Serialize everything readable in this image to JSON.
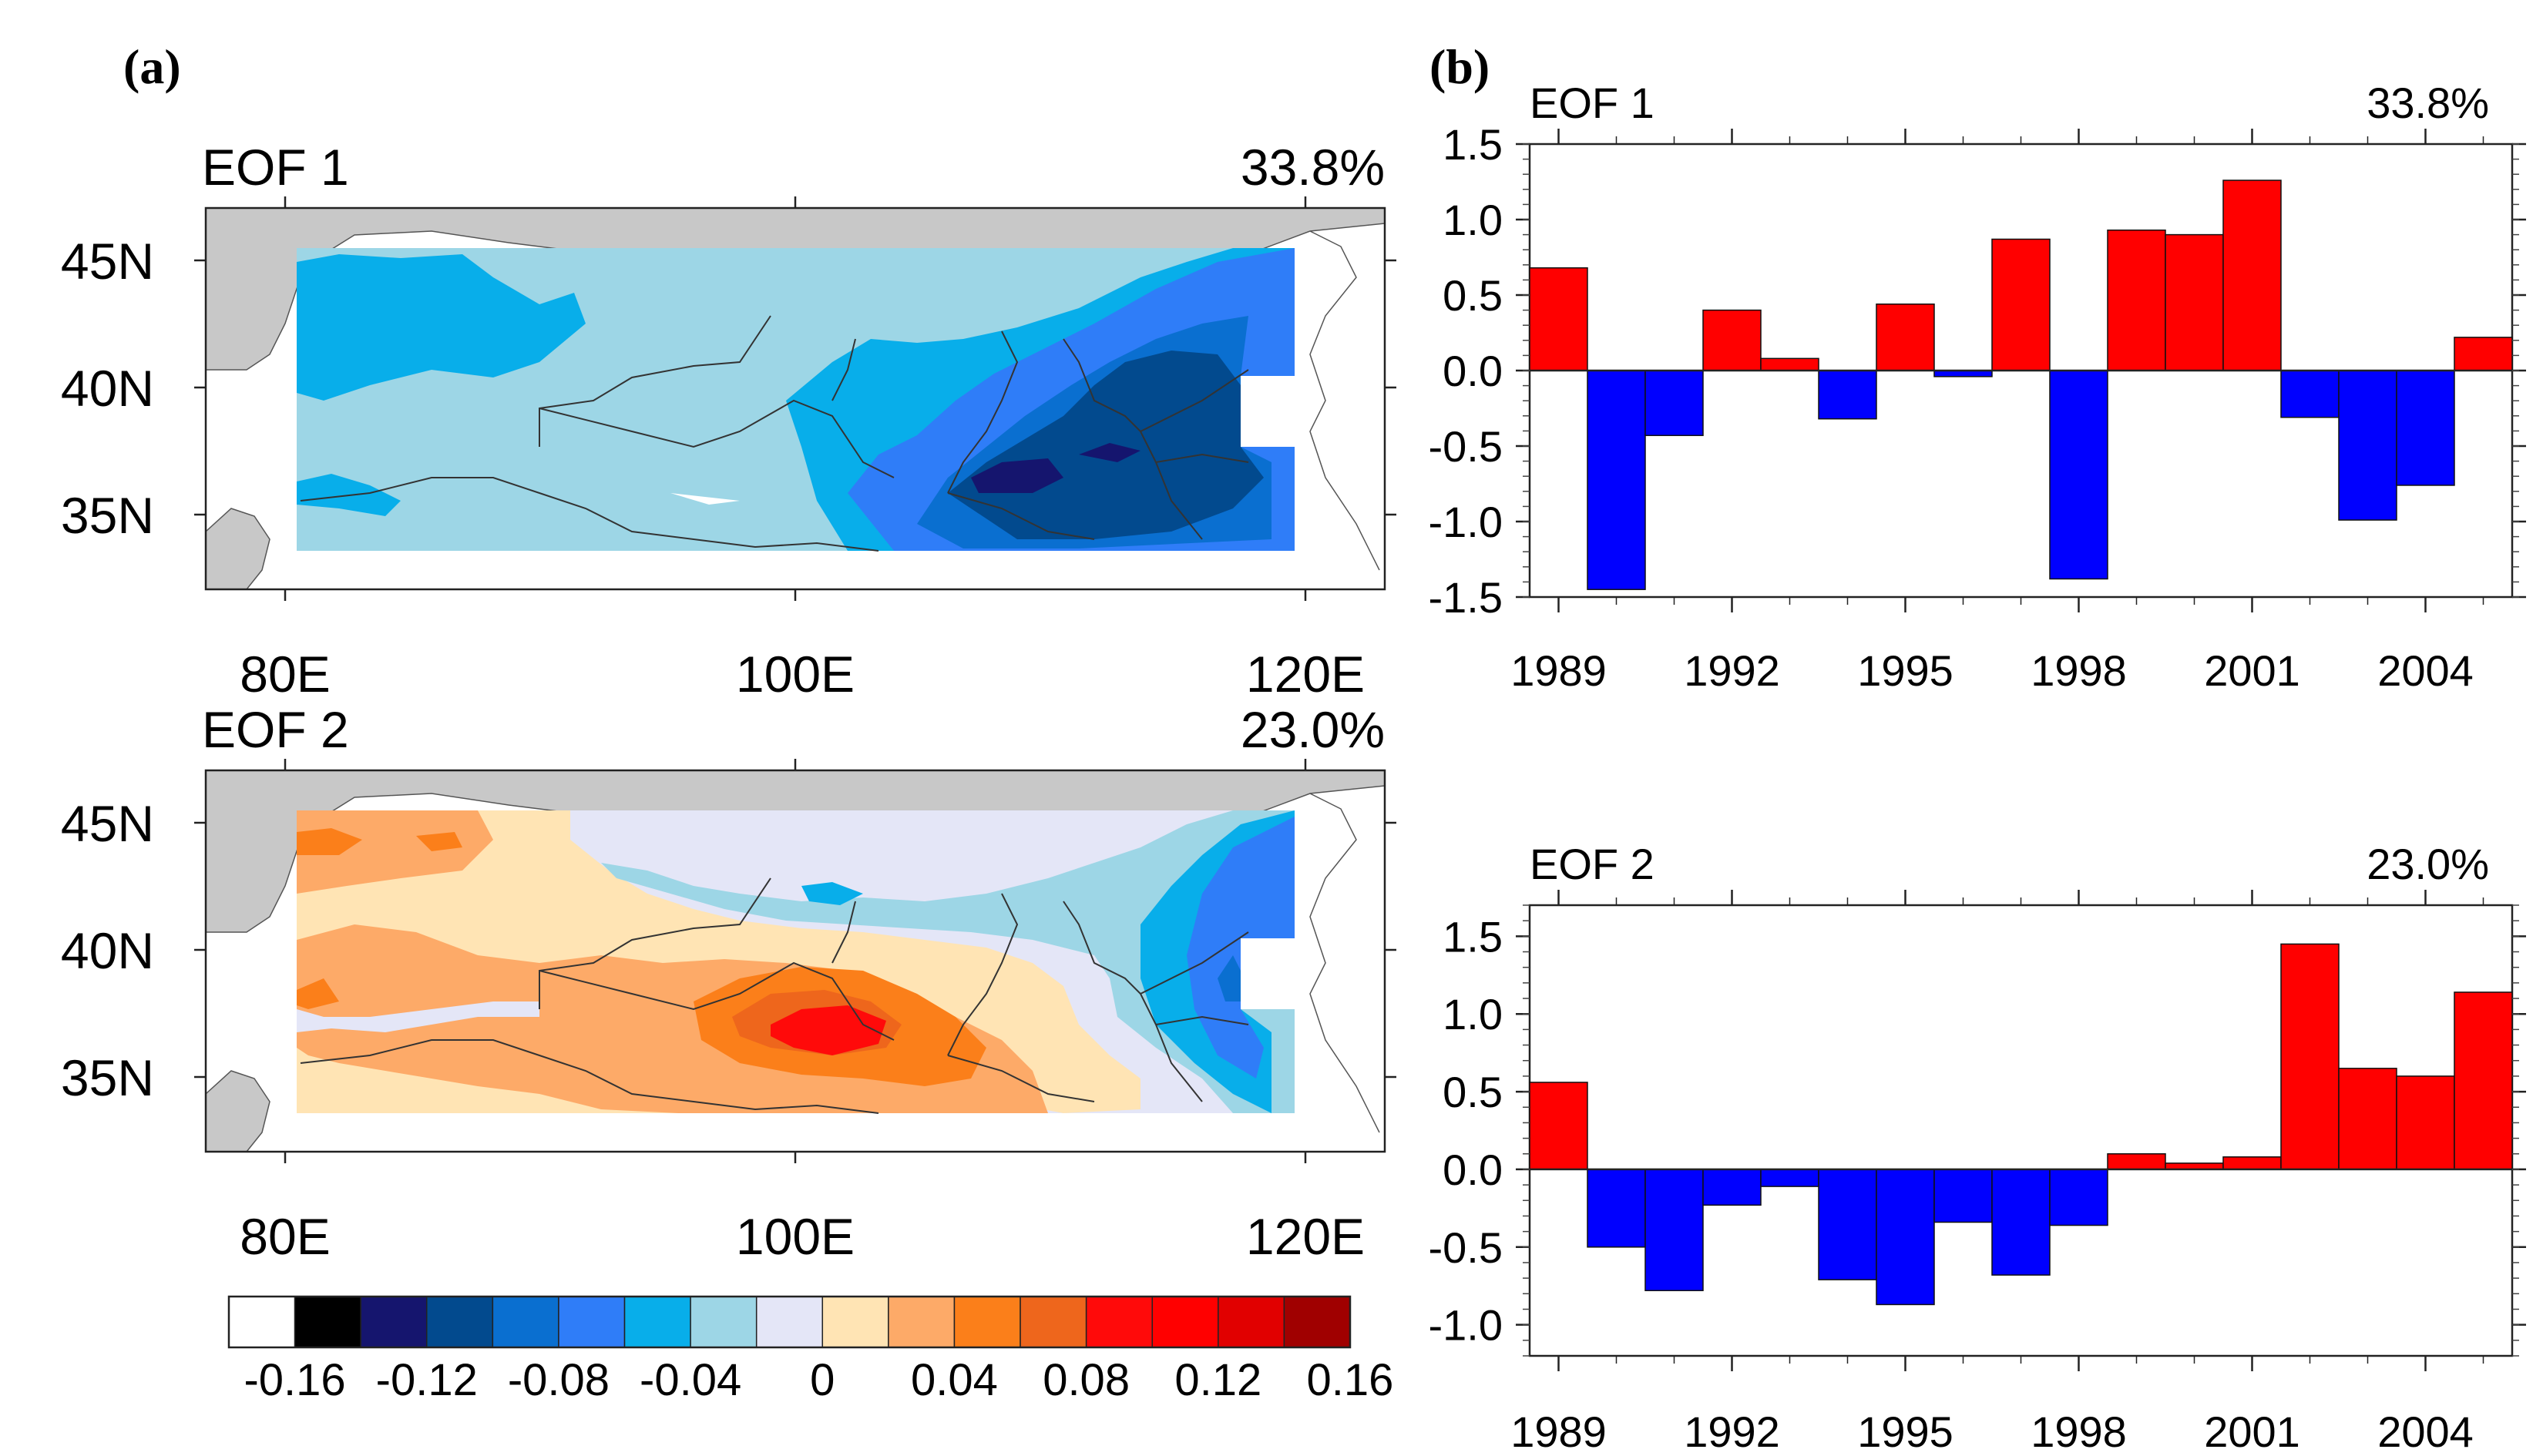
{
  "colors": {
    "land": "#c8c8c8",
    "ocean": "#ffffff",
    "positive_bar": "#ff0000",
    "negative_bar": "#0000ff",
    "scale": [
      "#ffffff",
      "#000000",
      "#15156e",
      "#024a8e",
      "#0a6fd0",
      "#2f7df8",
      "#08aeea",
      "#9dd6e6",
      "#e4e6f7",
      "#ffe4b4",
      "#fdaa68",
      "#fb7f1a",
      "#ee661c",
      "#ff0a0a",
      "#ff0000",
      "#e10000",
      "#a00000"
    ]
  },
  "panel_labels": {
    "a": "(a)",
    "b": "(b)"
  },
  "maps": [
    {
      "id": "eof1",
      "title": "EOF 1",
      "variance": "33.8%",
      "lat_labels": [
        "45N",
        "40N",
        "35N"
      ],
      "lon_labels": [
        "80E",
        "100E",
        "120E"
      ]
    },
    {
      "id": "eof2",
      "title": "EOF 2",
      "variance": "23.0%",
      "lat_labels": [
        "45N",
        "40N",
        "35N"
      ],
      "lon_labels": [
        "80E",
        "100E",
        "120E"
      ]
    }
  ],
  "colorbar": {
    "labels": [
      "-0.16",
      "-0.12",
      "-0.08",
      "-0.04",
      "0",
      "0.04",
      "0.08",
      "0.12",
      "0.16"
    ]
  },
  "chart_data": [
    {
      "type": "bar",
      "title": "EOF 1",
      "variance": "33.8%",
      "x": [
        1989,
        1990,
        1991,
        1992,
        1993,
        1994,
        1995,
        1996,
        1997,
        1998,
        1999,
        2000,
        2001,
        2002,
        2003,
        2004,
        2005
      ],
      "values": [
        0.68,
        -1.45,
        -0.43,
        0.4,
        0.08,
        -0.32,
        0.44,
        -0.04,
        0.87,
        -1.38,
        0.93,
        0.9,
        1.26,
        -0.31,
        -0.99,
        -0.76,
        0.22
      ],
      "ylim": [
        -1.5,
        1.5
      ],
      "yticks": [
        "1.5",
        "1.0",
        "0.5",
        "0.0",
        "-0.5",
        "-1.0",
        "-1.5"
      ],
      "xticks": [
        "1989",
        "1992",
        "1995",
        "1998",
        "2001",
        "2004"
      ]
    },
    {
      "type": "bar",
      "title": "EOF 2",
      "variance": "23.0%",
      "x": [
        1989,
        1990,
        1991,
        1992,
        1993,
        1994,
        1995,
        1996,
        1997,
        1998,
        1999,
        2000,
        2001,
        2002,
        2003,
        2004,
        2005
      ],
      "values": [
        0.56,
        -0.5,
        -0.78,
        -0.23,
        -0.11,
        -0.71,
        -0.87,
        -0.34,
        -0.68,
        -0.36,
        0.1,
        0.04,
        0.08,
        1.45,
        0.65,
        0.6,
        1.14
      ],
      "ylim": [
        -1.2,
        1.7
      ],
      "yticks": [
        "1.5",
        "1.0",
        "0.5",
        "0.0",
        "-0.5",
        "-1.0"
      ],
      "xticks": [
        "1989",
        "1992",
        "1995",
        "1998",
        "2001",
        "2004"
      ]
    }
  ]
}
